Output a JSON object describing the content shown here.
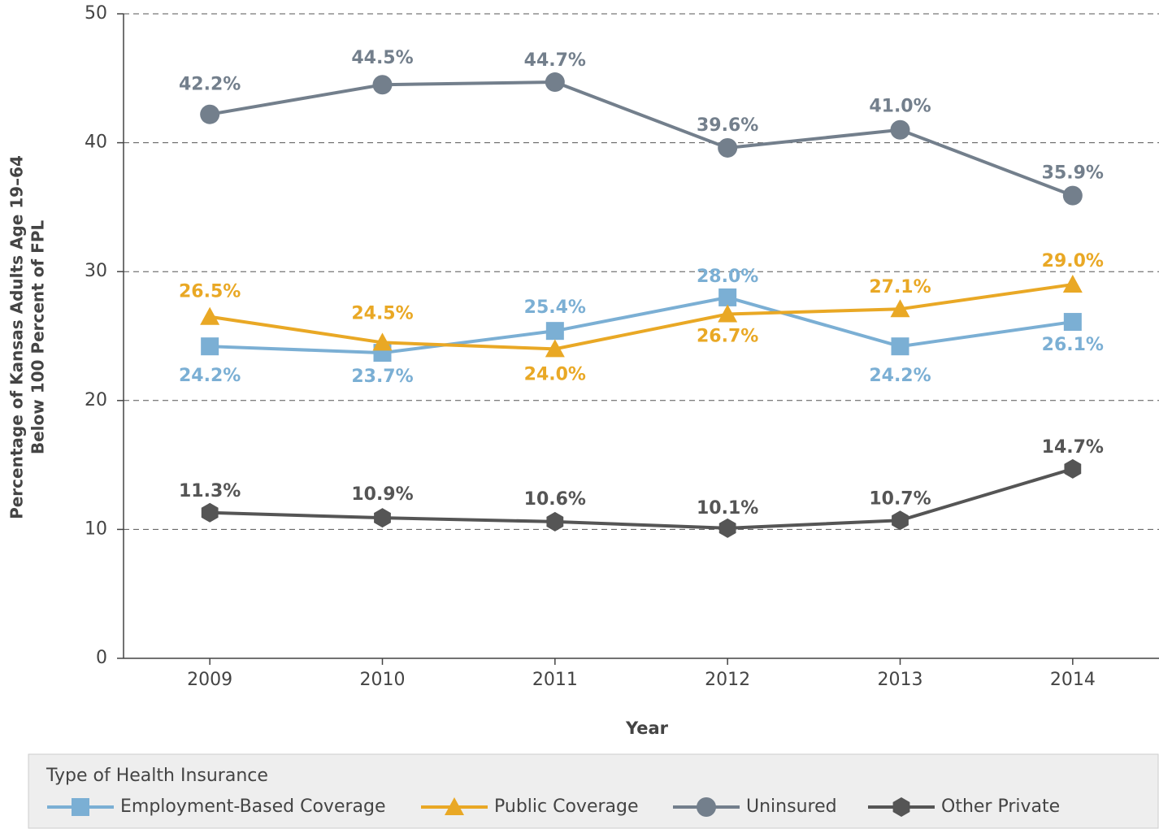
{
  "chart_data": {
    "type": "line",
    "categories": [
      "2009",
      "2010",
      "2011",
      "2012",
      "2013",
      "2014"
    ],
    "xlabel": "Year",
    "ylabel": [
      "Percentage of Kansas Adults Age 19–64",
      "Below 100 Percent of FPL"
    ],
    "ylim": [
      0,
      50
    ],
    "yticks": [
      0,
      10,
      20,
      30,
      40,
      50
    ],
    "grid": true,
    "legend_title": "Type of Health Insurance",
    "legend": "bottom",
    "series": [
      {
        "name": "Employment-Based Coverage",
        "color": "#7bafd4",
        "marker": "square",
        "values": [
          24.2,
          23.7,
          25.4,
          28.0,
          24.2,
          26.1
        ],
        "value_labels": [
          "24.2%",
          "23.7%",
          "25.4%",
          "28.0%",
          "24.2%",
          "26.1%"
        ]
      },
      {
        "name": "Public Coverage",
        "color": "#e9a825",
        "marker": "triangle",
        "values": [
          26.5,
          24.5,
          24.0,
          26.7,
          27.1,
          29.0
        ],
        "value_labels": [
          "26.5%",
          "24.5%",
          "24.0%",
          "26.7%",
          "27.1%",
          "29.0%"
        ]
      },
      {
        "name": "Uninsured",
        "color": "#737f8c",
        "marker": "circle",
        "values": [
          42.2,
          44.5,
          44.7,
          39.6,
          41.0,
          35.9
        ],
        "value_labels": [
          "42.2%",
          "44.5%",
          "44.7%",
          "39.6%",
          "41.0%",
          "35.9%"
        ]
      },
      {
        "name": "Other Private",
        "color": "#555555",
        "marker": "hexagon",
        "values": [
          11.3,
          10.9,
          10.6,
          10.1,
          10.7,
          14.7
        ],
        "value_labels": [
          "11.3%",
          "10.9%",
          "10.6%",
          "10.1%",
          "10.7%",
          "14.7%"
        ]
      }
    ]
  }
}
